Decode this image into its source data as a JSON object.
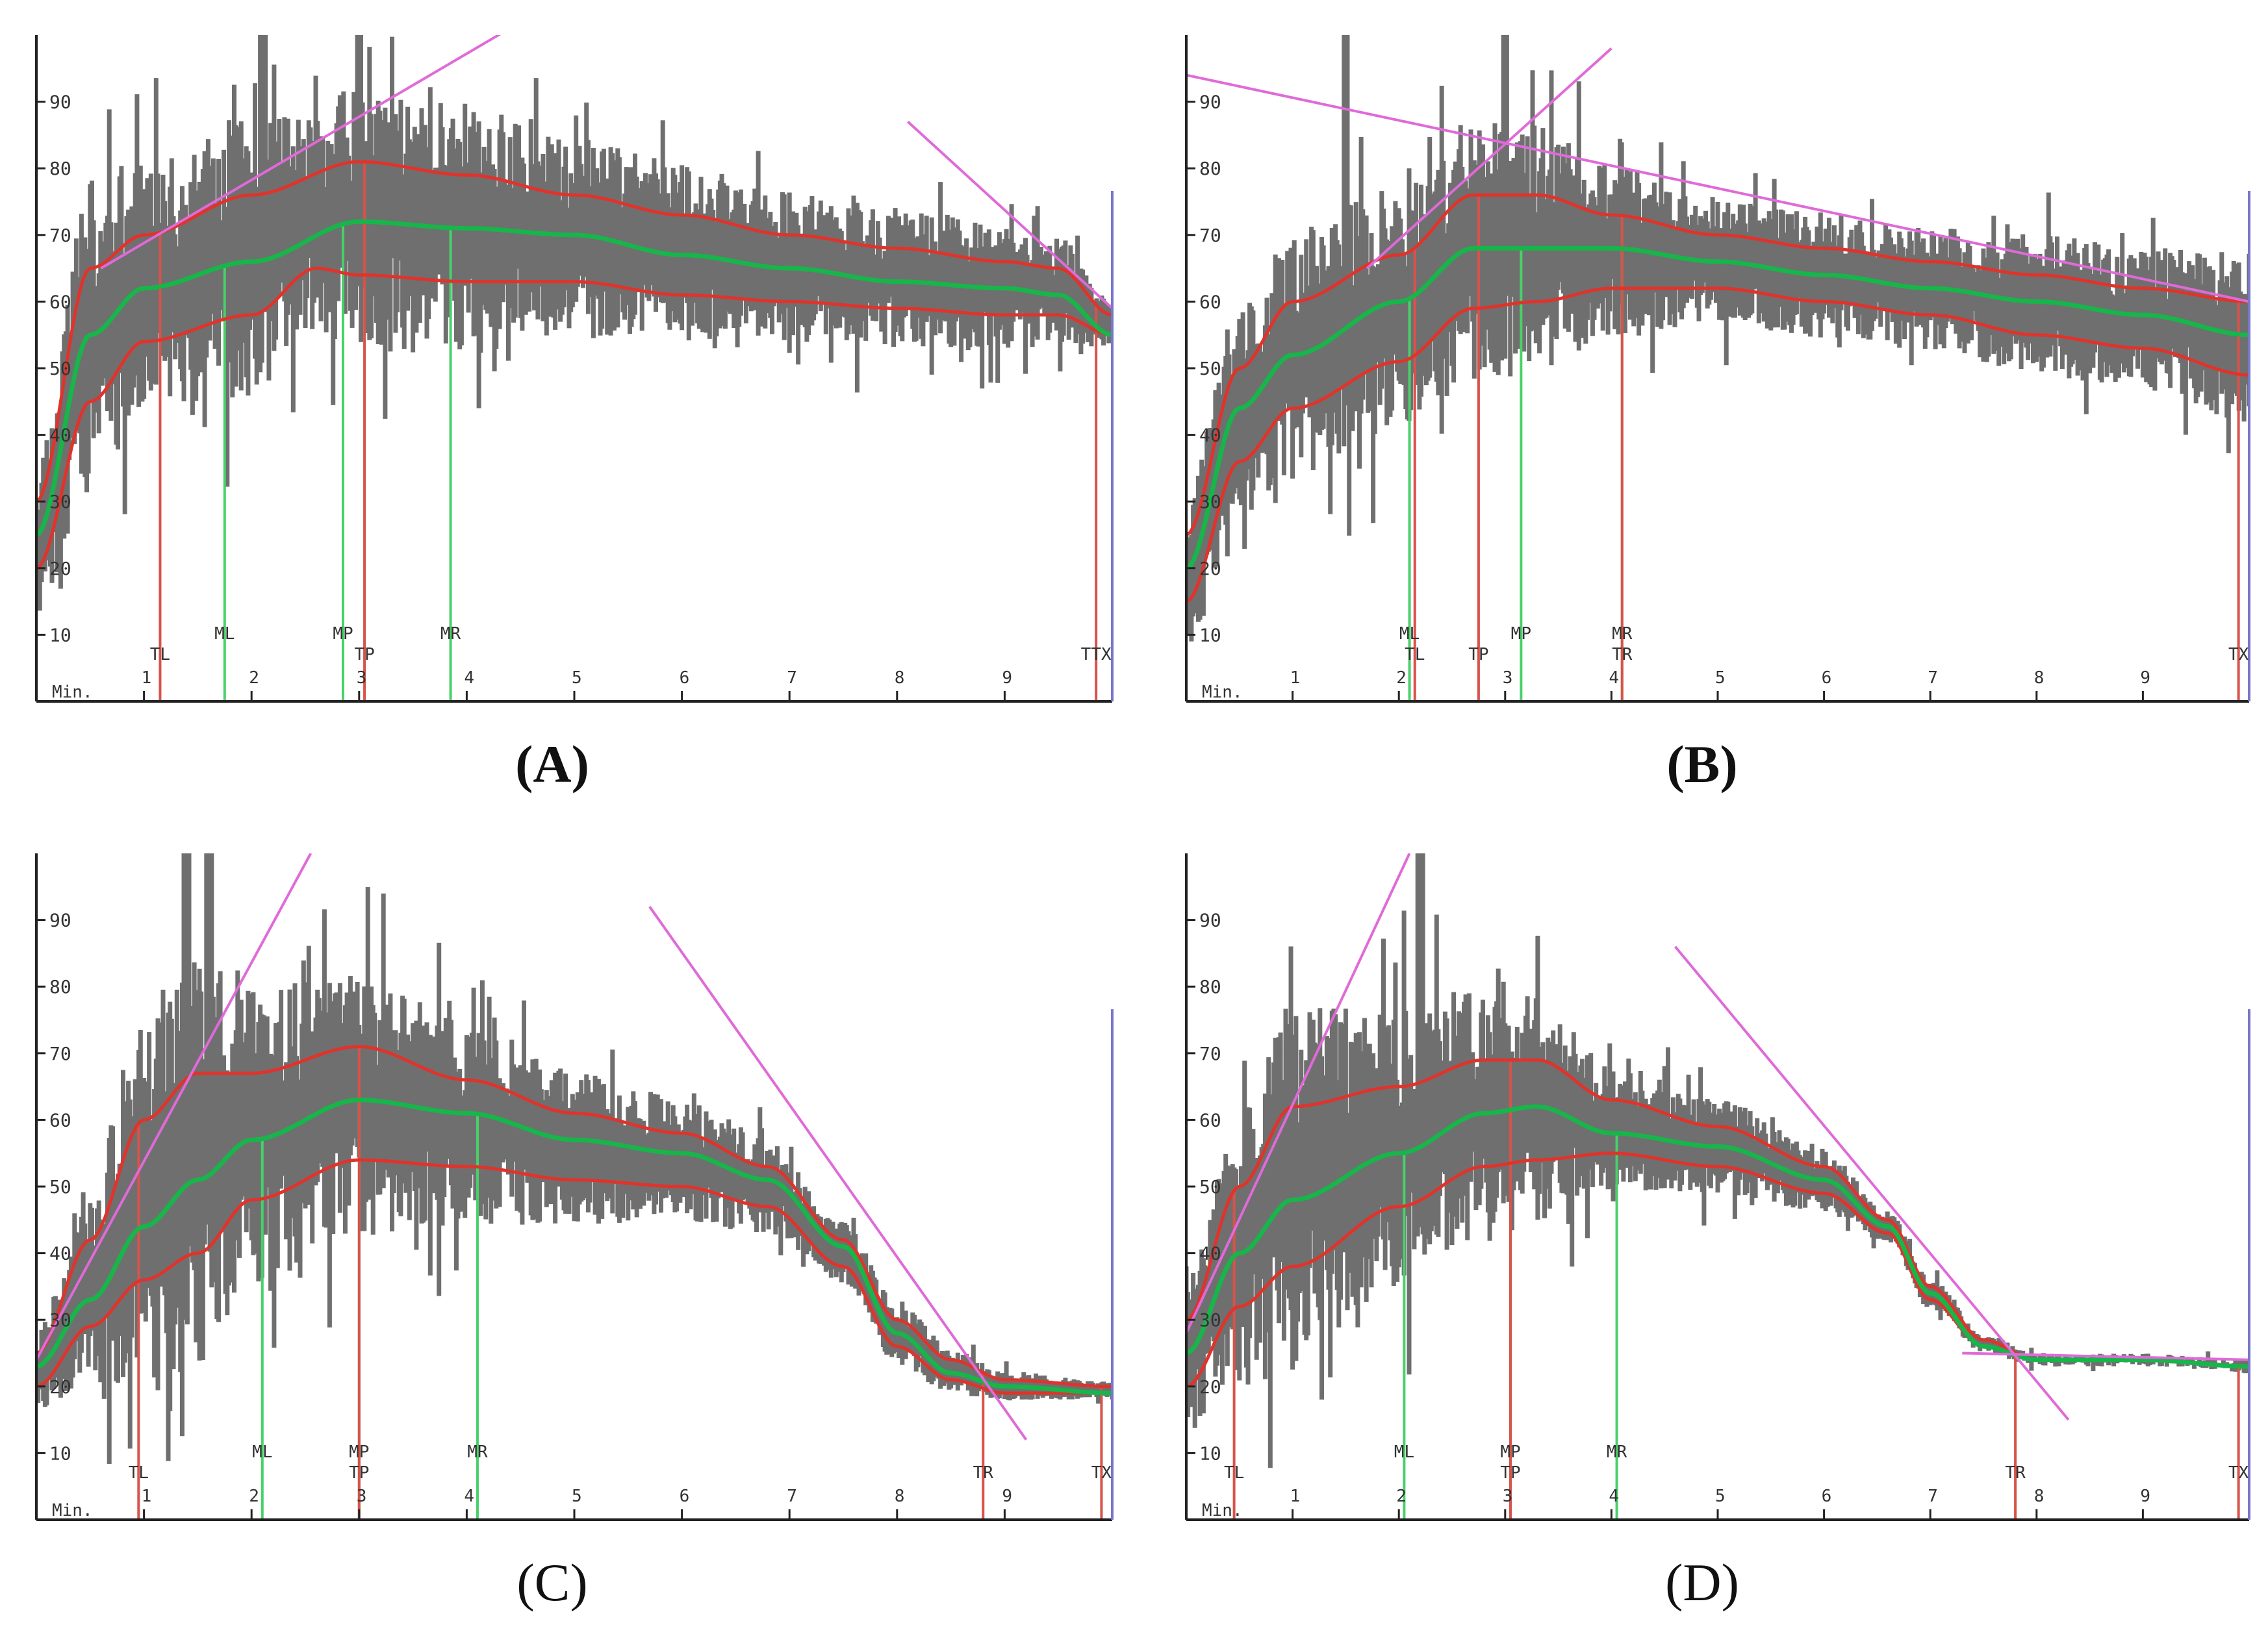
{
  "figure": {
    "colors": {
      "signal": "#6f6f6f",
      "envelope": "#e0332b",
      "mean": "#17b54a",
      "tangent": "#e06ad8",
      "red_marker": "#d7534a",
      "green_marker": "#49d06a",
      "end_marker": "#7777cc",
      "axis": "#222222",
      "label": "#333333"
    }
  },
  "chart_data": [
    {
      "id": "A",
      "caption": "(A)",
      "type": "line",
      "xlabel": "Min.",
      "ylabel": "",
      "xlim": [
        0,
        10
      ],
      "ylim": [
        0,
        100
      ],
      "yticks": [
        "10",
        "20",
        "30",
        "40",
        "50",
        "60",
        "70",
        "80",
        "90"
      ],
      "xticks": [
        "1",
        "2",
        "3",
        "4",
        "5",
        "6",
        "7",
        "8",
        "9"
      ],
      "noise_seed": 7,
      "spike_times": [
        2.1,
        3.0
      ],
      "series": [
        {
          "name": "upper",
          "x": [
            0,
            0.5,
            1.0,
            2.0,
            3.0,
            4.0,
            5.0,
            6.0,
            7.0,
            8.0,
            9.0,
            9.5,
            10.0
          ],
          "values": [
            30,
            65,
            70,
            76,
            81,
            79,
            76,
            73,
            70,
            68,
            66,
            65,
            58
          ]
        },
        {
          "name": "mean",
          "x": [
            0,
            0.5,
            1.0,
            2.0,
            3.0,
            4.0,
            5.0,
            6.0,
            7.0,
            8.0,
            9.0,
            9.5,
            10.0
          ],
          "values": [
            25,
            55,
            62,
            66,
            72,
            71,
            70,
            67,
            65,
            63,
            62,
            61,
            55
          ]
        },
        {
          "name": "lower",
          "x": [
            0,
            0.5,
            1.0,
            2.0,
            2.6,
            3.0,
            4.0,
            5.0,
            6.0,
            7.0,
            8.0,
            9.0,
            9.5,
            10.0
          ],
          "values": [
            20,
            45,
            54,
            58,
            65,
            64,
            63,
            63,
            61,
            60,
            59,
            58,
            58,
            55
          ]
        }
      ],
      "tangents": [
        {
          "x": [
            0.6,
            4.4
          ],
          "values": [
            65,
            101
          ]
        },
        {
          "x": [
            8.1,
            10.0
          ],
          "values": [
            87,
            59
          ]
        }
      ],
      "markers": [
        {
          "label": "TL",
          "x": 1.15,
          "color": "red",
          "row": 2
        },
        {
          "label": "ML",
          "x": 1.75,
          "color": "green",
          "row": 1
        },
        {
          "label": "MP",
          "x": 2.85,
          "color": "green",
          "row": 1
        },
        {
          "label": "TP",
          "x": 3.05,
          "color": "red",
          "row": 2
        },
        {
          "label": "MR",
          "x": 3.85,
          "color": "green",
          "row": 1
        },
        {
          "label": "TTX",
          "x": 9.85,
          "color": "red",
          "row": 2
        }
      ]
    },
    {
      "id": "B",
      "caption": "(B)",
      "type": "line",
      "xlabel": "Min.",
      "ylabel": "",
      "xlim": [
        0,
        10
      ],
      "ylim": [
        0,
        100
      ],
      "yticks": [
        "10",
        "20",
        "30",
        "40",
        "50",
        "60",
        "70",
        "80",
        "90"
      ],
      "xticks": [
        "1",
        "2",
        "3",
        "4",
        "5",
        "6",
        "7",
        "8",
        "9"
      ],
      "noise_seed": 19,
      "spike_times": [
        1.5,
        3.0
      ],
      "series": [
        {
          "name": "upper",
          "x": [
            0,
            0.5,
            1.0,
            2.0,
            2.7,
            3.3,
            4.0,
            5.0,
            6.0,
            7.0,
            8.0,
            9.0,
            10.0
          ],
          "values": [
            25,
            50,
            60,
            67,
            76,
            76,
            73,
            70,
            68,
            66,
            64,
            62,
            60
          ]
        },
        {
          "name": "mean",
          "x": [
            0,
            0.5,
            1.0,
            2.0,
            2.7,
            3.3,
            4.0,
            5.0,
            6.0,
            7.0,
            8.0,
            9.0,
            10.0
          ],
          "values": [
            20,
            44,
            52,
            60,
            68,
            68,
            68,
            66,
            64,
            62,
            60,
            58,
            55
          ]
        },
        {
          "name": "lower",
          "x": [
            0,
            0.5,
            1.0,
            2.0,
            2.7,
            3.3,
            4.0,
            5.0,
            6.0,
            7.0,
            8.0,
            9.0,
            10.0
          ],
          "values": [
            15,
            36,
            44,
            51,
            59,
            60,
            62,
            62,
            60,
            58,
            55,
            53,
            49
          ]
        }
      ],
      "tangents": [
        {
          "x": [
            0,
            10.0
          ],
          "values": [
            94,
            60
          ]
        },
        {
          "x": [
            1.7,
            4.0
          ],
          "values": [
            65,
            98
          ]
        }
      ],
      "markers": [
        {
          "label": "ML",
          "x": 2.1,
          "color": "green",
          "row": 1
        },
        {
          "label": "TL",
          "x": 2.15,
          "color": "red",
          "row": 2
        },
        {
          "label": "TP",
          "x": 2.75,
          "color": "red",
          "row": 2
        },
        {
          "label": "MP",
          "x": 3.15,
          "color": "green",
          "row": 1
        },
        {
          "label": "MR",
          "x": 4.1,
          "color": "green",
          "row": 1
        },
        {
          "label": "TR",
          "x": 4.1,
          "color": "red",
          "row": 2
        },
        {
          "label": "TX",
          "x": 9.9,
          "color": "red",
          "row": 2
        }
      ]
    },
    {
      "id": "C",
      "caption": "(C)",
      "type": "line",
      "xlabel": "Min.",
      "ylabel": "",
      "xlim": [
        0,
        10
      ],
      "ylim": [
        0,
        100
      ],
      "yticks": [
        "10",
        "20",
        "30",
        "40",
        "50",
        "60",
        "70",
        "80",
        "90"
      ],
      "xticks": [
        "1",
        "2",
        "3",
        "4",
        "5",
        "6",
        "7",
        "8",
        "9"
      ],
      "noise_seed": 31,
      "spike_times": [
        1.4,
        1.6
      ],
      "series": [
        {
          "name": "upper",
          "x": [
            0,
            0.5,
            1.0,
            1.5,
            2.0,
            3.0,
            4.0,
            5.0,
            6.0,
            6.8,
            7.5,
            8.0,
            8.5,
            9.0,
            10.0
          ],
          "values": [
            25,
            42,
            60,
            67,
            67,
            71,
            66,
            61,
            58,
            53,
            42,
            30,
            24,
            21,
            20
          ]
        },
        {
          "name": "mean",
          "x": [
            0,
            0.5,
            1.0,
            1.5,
            2.0,
            3.0,
            4.0,
            5.0,
            6.0,
            6.8,
            7.5,
            8.0,
            8.5,
            9.0,
            10.0
          ],
          "values": [
            23,
            33,
            44,
            51,
            57,
            63,
            61,
            57,
            55,
            51,
            41,
            28,
            22,
            20,
            19
          ]
        },
        {
          "name": "lower",
          "x": [
            0,
            0.5,
            1.0,
            1.5,
            2.0,
            3.0,
            4.0,
            5.0,
            6.0,
            6.8,
            7.5,
            8.0,
            8.5,
            9.0,
            10.0
          ],
          "values": [
            20,
            29,
            36,
            40,
            48,
            54,
            53,
            51,
            50,
            47,
            38,
            26,
            21,
            19,
            19
          ]
        }
      ],
      "tangents": [
        {
          "x": [
            0,
            2.55
          ],
          "values": [
            24,
            100
          ]
        },
        {
          "x": [
            5.7,
            9.2
          ],
          "values": [
            92,
            12
          ]
        }
      ],
      "markers": [
        {
          "label": "TL",
          "x": 0.95,
          "color": "red",
          "row": 2
        },
        {
          "label": "ML",
          "x": 2.1,
          "color": "green",
          "row": 1
        },
        {
          "label": "MP",
          "x": 3.0,
          "color": "green",
          "row": 1
        },
        {
          "label": "TP",
          "x": 3.0,
          "color": "red",
          "row": 2
        },
        {
          "label": "MR",
          "x": 4.1,
          "color": "green",
          "row": 1
        },
        {
          "label": "TR",
          "x": 8.8,
          "color": "red",
          "row": 2
        },
        {
          "label": "TX",
          "x": 9.9,
          "color": "red",
          "row": 2
        }
      ]
    },
    {
      "id": "D",
      "caption": "(D)",
      "type": "line",
      "xlabel": "Min.",
      "ylabel": "",
      "xlim": [
        0,
        10
      ],
      "ylim": [
        0,
        100
      ],
      "yticks": [
        "10",
        "20",
        "30",
        "40",
        "50",
        "60",
        "70",
        "80",
        "90"
      ],
      "xticks": [
        "1",
        "2",
        "3",
        "4",
        "5",
        "6",
        "7",
        "8",
        "9"
      ],
      "noise_seed": 47,
      "spike_times": [
        2.2
      ],
      "series": [
        {
          "name": "upper",
          "x": [
            0,
            0.5,
            1.0,
            2.0,
            2.8,
            3.3,
            4.0,
            5.0,
            6.0,
            6.6,
            7.0,
            7.5,
            8.0,
            9.0,
            10.0
          ],
          "values": [
            30,
            50,
            62,
            65,
            69,
            69,
            63,
            59,
            53,
            45,
            35,
            27,
            24,
            24,
            23
          ]
        },
        {
          "name": "mean",
          "x": [
            0,
            0.5,
            1.0,
            2.0,
            2.8,
            3.3,
            4.0,
            5.0,
            6.0,
            6.6,
            7.0,
            7.5,
            8.0,
            9.0,
            10.0
          ],
          "values": [
            25,
            40,
            48,
            55,
            61,
            62,
            58,
            56,
            51,
            44,
            34,
            26,
            24,
            24,
            23
          ]
        },
        {
          "name": "lower",
          "x": [
            0,
            0.5,
            1.0,
            2.0,
            2.8,
            3.3,
            4.0,
            5.0,
            6.0,
            6.6,
            7.0,
            7.5,
            8.0,
            9.0,
            10.0
          ],
          "values": [
            20,
            32,
            38,
            47,
            53,
            54,
            55,
            53,
            49,
            43,
            33,
            26,
            24,
            24,
            23
          ]
        }
      ],
      "tangents": [
        {
          "x": [
            0,
            2.1
          ],
          "values": [
            28,
            100
          ]
        },
        {
          "x": [
            4.6,
            8.3
          ],
          "values": [
            86,
            15
          ]
        },
        {
          "x": [
            7.3,
            10.0
          ],
          "values": [
            25,
            24
          ]
        }
      ],
      "markers": [
        {
          "label": "TL",
          "x": 0.45,
          "color": "red",
          "row": 2
        },
        {
          "label": "ML",
          "x": 2.05,
          "color": "green",
          "row": 1
        },
        {
          "label": "MP",
          "x": 3.05,
          "color": "green",
          "row": 1
        },
        {
          "label": "TP",
          "x": 3.05,
          "color": "red",
          "row": 2
        },
        {
          "label": "MR",
          "x": 4.05,
          "color": "green",
          "row": 1
        },
        {
          "label": "TR",
          "x": 7.8,
          "color": "red",
          "row": 2
        },
        {
          "label": "TX",
          "x": 9.9,
          "color": "red",
          "row": 2
        }
      ]
    }
  ]
}
